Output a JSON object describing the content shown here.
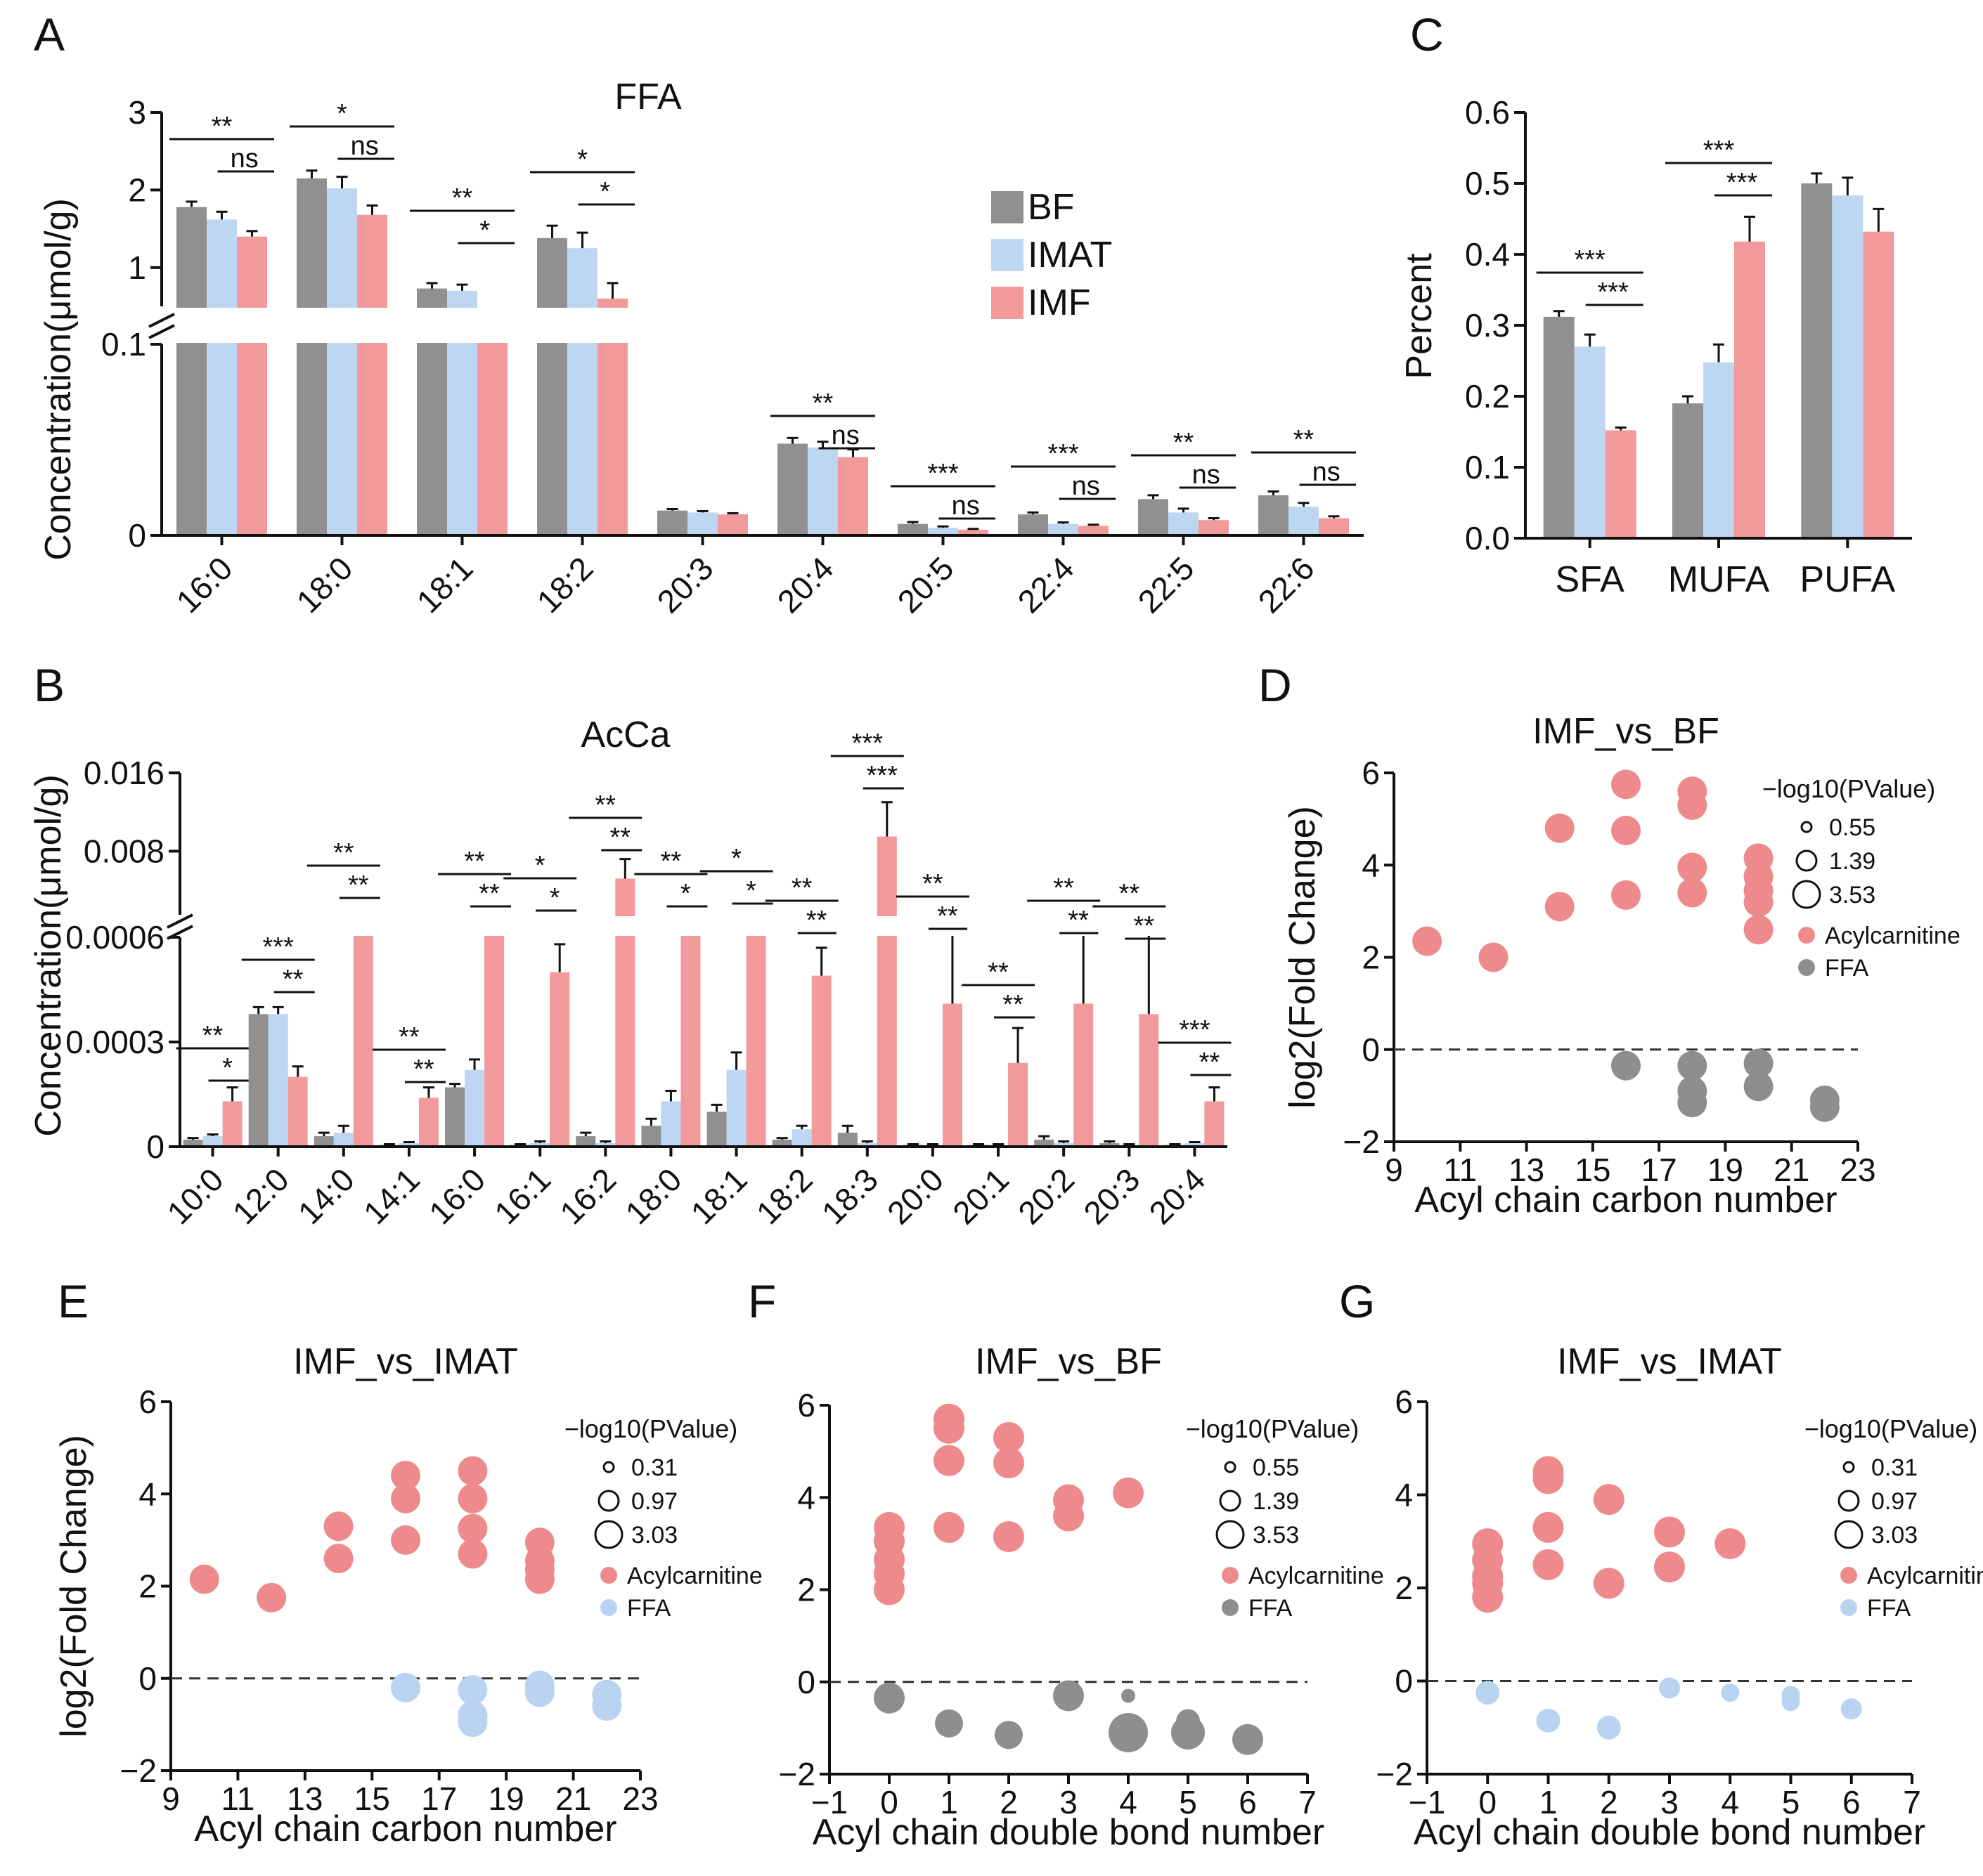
{
  "colors": {
    "BF": "#909090",
    "IMAT": "#bdd7f2",
    "IMF": "#f29a9b",
    "axis": "#111111",
    "acyl": "#ee8a8b",
    "ffa_grey": "#8e8e8e",
    "ffa_blue": "#b9d4f1"
  },
  "chart_data": [
    {
      "panel": "A",
      "type": "bar",
      "title": "FFA",
      "ylabel": "Concentration(μmol/g)",
      "xlabel": "",
      "categories": [
        "16:0",
        "18:0",
        "18:1",
        "18:2",
        "20:3",
        "20:4",
        "20:5",
        "22:4",
        "22:5",
        "22:6"
      ],
      "series": [
        {
          "name": "BF",
          "values": [
            1.78,
            2.15,
            0.73,
            1.38,
            0.013,
            0.048,
            0.006,
            0.011,
            0.019,
            0.021
          ]
        },
        {
          "name": "IMAT",
          "values": [
            1.62,
            2.02,
            0.7,
            1.25,
            0.012,
            0.046,
            0.004,
            0.006,
            0.012,
            0.015
          ]
        },
        {
          "name": "IMF",
          "values": [
            1.4,
            1.68,
            0.3,
            0.6,
            0.011,
            0.041,
            0.003,
            0.005,
            0.008,
            0.009
          ]
        }
      ],
      "errors": [
        [
          0.07,
          0.1,
          0.07,
          0.16,
          0.0008,
          0.003,
          0.001,
          0.001,
          0.002,
          0.002
        ],
        [
          0.1,
          0.15,
          0.08,
          0.2,
          0.0007,
          0.003,
          0.0007,
          0.0008,
          0.002,
          0.002
        ],
        [
          0.07,
          0.12,
          0.07,
          0.2,
          0.0006,
          0.004,
          0.0004,
          0.0006,
          0.001,
          0.001
        ]
      ],
      "y_ticks": [
        "0",
        "0.1",
        "1",
        "2",
        "3"
      ],
      "ylim_lower": [
        0,
        0.1
      ],
      "ylim_upper": [
        0.5,
        3
      ],
      "legend": [
        "BF",
        "IMAT",
        "IMF"
      ],
      "significance": [
        [
          "**",
          "ns"
        ],
        [
          "*",
          "ns"
        ],
        [
          "**",
          "*"
        ],
        [
          "*",
          "*"
        ],
        [
          "",
          ""
        ],
        [
          "**",
          "ns"
        ],
        [
          "***",
          "ns"
        ],
        [
          "***",
          "ns"
        ],
        [
          "**",
          "ns"
        ],
        [
          "**",
          "ns"
        ]
      ]
    },
    {
      "panel": "B",
      "type": "bar",
      "title": "AcCa",
      "ylabel": "Concentration(μmol/g)",
      "xlabel": "",
      "categories": [
        "10:0",
        "12:0",
        "14:0",
        "14:1",
        "16:0",
        "16:1",
        "16:2",
        "18:0",
        "18:1",
        "18:2",
        "18:3",
        "20:0",
        "20:1",
        "20:2",
        "20:3",
        "20:4"
      ],
      "series": [
        {
          "name": "BF",
          "values": [
            2e-05,
            0.00038,
            3e-05,
            5e-06,
            0.00017,
            5e-06,
            3e-05,
            6e-05,
            0.0001,
            2e-05,
            4e-05,
            5e-06,
            5e-06,
            2e-05,
            1e-05,
            5e-06
          ]
        },
        {
          "name": "IMAT",
          "values": [
            3e-05,
            0.00038,
            4e-05,
            1e-05,
            0.00022,
            1e-05,
            1e-05,
            0.00013,
            0.00022,
            5e-05,
            1e-05,
            5e-06,
            5e-06,
            1e-05,
            5e-06,
            1e-05
          ]
        },
        {
          "name": "IMF",
          "values": [
            0.00013,
            0.0002,
            0.00062,
            0.00014,
            0.00068,
            0.0005,
            0.0052,
            0.00062,
            0.00062,
            0.00049,
            0.0095,
            0.00041,
            0.00024,
            0.00041,
            0.00038,
            0.00013
          ]
        }
      ],
      "errors": [
        [
          5e-06,
          2e-05,
          1e-05,
          2e-06,
          1e-05,
          2e-06,
          1e-05,
          2e-05,
          2e-05,
          5e-06,
          2e-05,
          2e-06,
          2e-06,
          1e-05,
          5e-06,
          2e-06
        ],
        [
          5e-06,
          2e-05,
          2e-05,
          3e-06,
          3e-05,
          5e-06,
          5e-06,
          3e-05,
          5e-05,
          1e-05,
          5e-06,
          2e-06,
          2e-06,
          5e-06,
          2e-06,
          3e-06
        ],
        [
          4e-05,
          3e-05,
          0.0001,
          3e-05,
          0.0001,
          8e-05,
          0.002,
          0.0001,
          0.0001,
          8e-05,
          0.0035,
          0.0003,
          0.0001,
          0.00023,
          0.00022,
          4e-05
        ]
      ],
      "y_ticks": [
        "0",
        "0.0003",
        "0.0006",
        "0.008",
        "0.016"
      ],
      "ylim_lower": [
        0,
        0.0006
      ],
      "ylim_upper": [
        0.0015,
        0.016
      ],
      "significance": [
        [
          "**",
          "*"
        ],
        [
          "***",
          "**"
        ],
        [
          "**",
          "**"
        ],
        [
          "**",
          "**"
        ],
        [
          "**",
          "**"
        ],
        [
          "*",
          "*"
        ],
        [
          "**",
          "**"
        ],
        [
          "**",
          "*"
        ],
        [
          "*",
          "*"
        ],
        [
          "**",
          "**"
        ],
        [
          "***",
          "***"
        ],
        [
          "**",
          "**"
        ],
        [
          "**",
          "**"
        ],
        [
          "**",
          "**"
        ],
        [
          "**",
          "**"
        ],
        [
          "***",
          "**"
        ]
      ]
    },
    {
      "panel": "C",
      "type": "bar",
      "title": "",
      "ylabel": "Percent",
      "xlabel": "",
      "categories": [
        "SFA",
        "MUFA",
        "PUFA"
      ],
      "series": [
        {
          "name": "BF",
          "values": [
            0.312,
            0.19,
            0.5
          ]
        },
        {
          "name": "IMAT",
          "values": [
            0.27,
            0.248,
            0.483
          ]
        },
        {
          "name": "IMF",
          "values": [
            0.152,
            0.418,
            0.432
          ]
        }
      ],
      "errors": [
        [
          0.008,
          0.01,
          0.014
        ],
        [
          0.017,
          0.025,
          0.025
        ],
        [
          0.004,
          0.035,
          0.032
        ]
      ],
      "y_ticks": [
        "0.0",
        "0.1",
        "0.2",
        "0.3",
        "0.4",
        "0.5",
        "0.6"
      ],
      "ylim": [
        0,
        0.6
      ],
      "significance": [
        [
          "***",
          "***"
        ],
        [
          "***",
          "***"
        ],
        [
          "",
          ""
        ]
      ]
    },
    {
      "panel": "D",
      "type": "scatter",
      "title": "IMF_vs_BF",
      "ylabel": "log2(Fold Change)",
      "xlabel": "Acyl chain carbon number",
      "xlim": [
        9,
        23
      ],
      "ylim": [
        -2,
        6
      ],
      "x_ticks": [
        "9",
        "11",
        "13",
        "15",
        "17",
        "19",
        "21",
        "23"
      ],
      "y_ticks": [
        "−2",
        "0",
        "2",
        "4",
        "6"
      ],
      "size_legend_title": "−log10(PValue)",
      "size_legend": [
        "0.55",
        "1.39",
        "3.53"
      ],
      "groups": [
        "Acylcarnitine",
        "FFA"
      ],
      "ffa_color": "grey",
      "points": [
        [
          10,
          2.35,
          "Acylcarnitine"
        ],
        [
          12,
          2,
          "Acylcarnitine"
        ],
        [
          14,
          4.8,
          "Acylcarnitine"
        ],
        [
          14,
          3.1,
          "Acylcarnitine"
        ],
        [
          16,
          5.75,
          "Acylcarnitine"
        ],
        [
          16,
          4.75,
          "Acylcarnitine"
        ],
        [
          16,
          3.35,
          "Acylcarnitine"
        ],
        [
          18,
          5.6,
          "Acylcarnitine"
        ],
        [
          18,
          5.3,
          "Acylcarnitine"
        ],
        [
          18,
          3.95,
          "Acylcarnitine"
        ],
        [
          18,
          3.4,
          "Acylcarnitine"
        ],
        [
          20,
          4.15,
          "Acylcarnitine"
        ],
        [
          20,
          3.75,
          "Acylcarnitine"
        ],
        [
          20,
          3.45,
          "Acylcarnitine"
        ],
        [
          20,
          3.2,
          "Acylcarnitine"
        ],
        [
          20,
          2.6,
          "Acylcarnitine"
        ],
        [
          16,
          -0.35,
          "FFA"
        ],
        [
          18,
          -0.35,
          "FFA"
        ],
        [
          18,
          -0.9,
          "FFA"
        ],
        [
          18,
          -1.15,
          "FFA"
        ],
        [
          20,
          -0.3,
          "FFA"
        ],
        [
          20,
          -0.8,
          "FFA"
        ],
        [
          22,
          -1.1,
          "FFA"
        ],
        [
          22,
          -1.25,
          "FFA"
        ]
      ]
    },
    {
      "panel": "E",
      "type": "scatter",
      "title": "IMF_vs_IMAT",
      "ylabel": "log2(Fold Change)",
      "xlabel": "Acyl chain carbon number",
      "xlim": [
        9,
        23
      ],
      "ylim": [
        -2,
        6
      ],
      "x_ticks": [
        "9",
        "11",
        "13",
        "15",
        "17",
        "19",
        "21",
        "23"
      ],
      "y_ticks": [
        "−2",
        "0",
        "2",
        "4",
        "6"
      ],
      "size_legend_title": "−log10(PValue)",
      "size_legend": [
        "0.31",
        "0.97",
        "3.03"
      ],
      "groups": [
        "Acylcarnitine",
        "FFA"
      ],
      "ffa_color": "blue",
      "points": [
        [
          10,
          2.15,
          "Acylcarnitine"
        ],
        [
          12,
          1.75,
          "Acylcarnitine"
        ],
        [
          14,
          3.3,
          "Acylcarnitine"
        ],
        [
          14,
          2.6,
          "Acylcarnitine"
        ],
        [
          16,
          4.4,
          "Acylcarnitine"
        ],
        [
          16,
          3.9,
          "Acylcarnitine"
        ],
        [
          16,
          3,
          "Acylcarnitine"
        ],
        [
          18,
          4.5,
          "Acylcarnitine"
        ],
        [
          18,
          3.9,
          "Acylcarnitine"
        ],
        [
          18,
          3.25,
          "Acylcarnitine"
        ],
        [
          18,
          2.7,
          "Acylcarnitine"
        ],
        [
          20,
          2.95,
          "Acylcarnitine"
        ],
        [
          20,
          2.55,
          "Acylcarnitine"
        ],
        [
          20,
          2.35,
          "Acylcarnitine"
        ],
        [
          20,
          2.15,
          "Acylcarnitine"
        ],
        [
          16,
          -0.2,
          "FFA"
        ],
        [
          18,
          -0.25,
          "FFA"
        ],
        [
          18,
          -0.8,
          "FFA"
        ],
        [
          18,
          -0.95,
          "FFA"
        ],
        [
          20,
          -0.15,
          "FFA"
        ],
        [
          20,
          -0.3,
          "FFA"
        ],
        [
          22,
          -0.35,
          "FFA"
        ],
        [
          22,
          -0.6,
          "FFA"
        ]
      ]
    },
    {
      "panel": "F",
      "type": "scatter",
      "title": "IMF_vs_BF",
      "ylabel": "",
      "xlabel": "Acyl chain double bond number",
      "xlim": [
        -1,
        7
      ],
      "ylim": [
        -2,
        6
      ],
      "x_ticks": [
        "−1",
        "0",
        "1",
        "2",
        "3",
        "4",
        "5",
        "6",
        "7"
      ],
      "y_ticks": [
        "−2",
        "0",
        "2",
        "4",
        "6"
      ],
      "size_legend_title": "−log10(PValue)",
      "size_legend": [
        "0.55",
        "1.39",
        "3.53"
      ],
      "groups": [
        "Acylcarnitine",
        "FFA"
      ],
      "ffa_color": "grey",
      "points": [
        [
          0,
          3.35,
          "Acylcarnitine"
        ],
        [
          0,
          3.05,
          "Acylcarnitine"
        ],
        [
          0,
          2.65,
          "Acylcarnitine"
        ],
        [
          0,
          2.35,
          "Acylcarnitine"
        ],
        [
          0,
          2,
          "Acylcarnitine"
        ],
        [
          1,
          5.7,
          "Acylcarnitine"
        ],
        [
          1,
          5.5,
          "Acylcarnitine"
        ],
        [
          1,
          4.8,
          "Acylcarnitine"
        ],
        [
          1,
          3.35,
          "Acylcarnitine"
        ],
        [
          2,
          5.3,
          "Acylcarnitine"
        ],
        [
          2,
          4.75,
          "Acylcarnitine"
        ],
        [
          2,
          3.15,
          "Acylcarnitine"
        ],
        [
          3,
          3.95,
          "Acylcarnitine"
        ],
        [
          3,
          3.6,
          "Acylcarnitine"
        ],
        [
          4,
          4.1,
          "Acylcarnitine"
        ],
        [
          0,
          -0.35,
          "FFA"
        ],
        [
          1,
          -0.9,
          "FFA"
        ],
        [
          2,
          -1.15,
          "FFA"
        ],
        [
          3,
          -0.3,
          "FFA"
        ],
        [
          4,
          -0.3,
          "FFA"
        ],
        [
          4,
          -1.1,
          "FFA"
        ],
        [
          5,
          -0.85,
          "FFA"
        ],
        [
          5,
          -1.1,
          "FFA"
        ],
        [
          6,
          -1.25,
          "FFA"
        ]
      ],
      "point_sizes": [
        22,
        22,
        22,
        22,
        22,
        22,
        22,
        22,
        22,
        22,
        22,
        22,
        22,
        22,
        22,
        22,
        20,
        20,
        22,
        10,
        28,
        17,
        24,
        22
      ]
    },
    {
      "panel": "G",
      "type": "scatter",
      "title": "IMF_vs_IMAT",
      "ylabel": "",
      "xlabel": "Acyl chain double bond number",
      "xlim": [
        -1,
        7
      ],
      "ylim": [
        -2,
        6
      ],
      "x_ticks": [
        "−1",
        "0",
        "1",
        "2",
        "3",
        "4",
        "5",
        "6",
        "7"
      ],
      "y_ticks": [
        "−2",
        "0",
        "2",
        "4",
        "6"
      ],
      "size_legend_title": "−log10(PValue)",
      "size_legend": [
        "0.31",
        "0.97",
        "3.03"
      ],
      "groups": [
        "Acylcarnitine",
        "FFA"
      ],
      "ffa_color": "blue",
      "points": [
        [
          0,
          2.95,
          "Acylcarnitine"
        ],
        [
          0,
          2.6,
          "Acylcarnitine"
        ],
        [
          0,
          2.25,
          "Acylcarnitine"
        ],
        [
          0,
          2.1,
          "Acylcarnitine"
        ],
        [
          0,
          1.8,
          "Acylcarnitine"
        ],
        [
          1,
          4.5,
          "Acylcarnitine"
        ],
        [
          1,
          4.35,
          "Acylcarnitine"
        ],
        [
          1,
          3.3,
          "Acylcarnitine"
        ],
        [
          1,
          2.5,
          "Acylcarnitine"
        ],
        [
          2,
          3.9,
          "Acylcarnitine"
        ],
        [
          2,
          2.1,
          "Acylcarnitine"
        ],
        [
          3,
          3.2,
          "Acylcarnitine"
        ],
        [
          3,
          2.45,
          "Acylcarnitine"
        ],
        [
          4,
          2.95,
          "Acylcarnitine"
        ],
        [
          0,
          -0.25,
          "FFA"
        ],
        [
          1,
          -0.85,
          "FFA"
        ],
        [
          2,
          -1,
          "FFA"
        ],
        [
          3,
          -0.15,
          "FFA"
        ],
        [
          4,
          -0.25,
          "FFA"
        ],
        [
          5,
          -0.3,
          "FFA"
        ],
        [
          5,
          -0.45,
          "FFA"
        ],
        [
          6,
          -0.6,
          "FFA"
        ]
      ],
      "point_sizes": [
        22,
        22,
        22,
        22,
        22,
        22,
        22,
        22,
        22,
        22,
        22,
        22,
        22,
        22,
        17,
        17,
        17,
        15,
        13,
        13,
        13,
        15
      ]
    }
  ]
}
